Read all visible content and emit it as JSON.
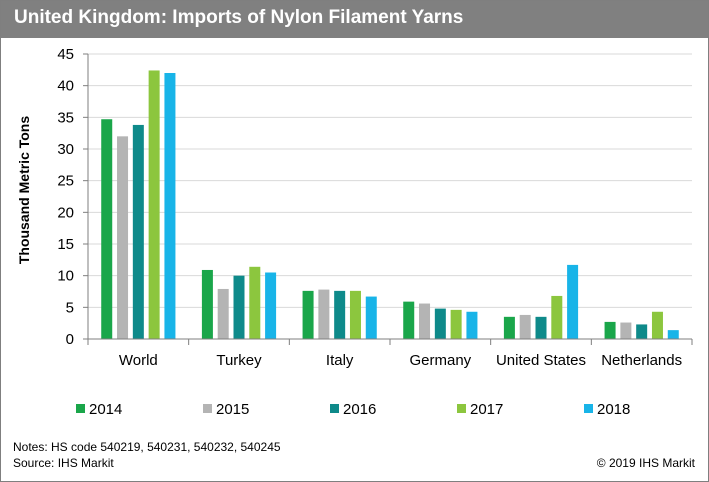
{
  "header": {
    "title": "United Kingdom: Imports of Nylon Filament Yarns"
  },
  "footer": {
    "notes": "Notes: HS code 540219, 540231, 540232, 540245",
    "source": "Source: IHS Markit",
    "copyright": "© 2019 IHS Markit"
  },
  "chart_data": {
    "type": "bar",
    "title": "United Kingdom: Imports of Nylon Filament Yarns",
    "xlabel": "",
    "ylabel": "Thousand Metric Tons",
    "ylim": [
      0,
      45
    ],
    "yticks": [
      0,
      5,
      10,
      15,
      20,
      25,
      30,
      35,
      40,
      45
    ],
    "grid": true,
    "legend_position": "bottom",
    "categories": [
      "World",
      "Turkey",
      "Italy",
      "Germany",
      "United States",
      "Netherlands"
    ],
    "series": [
      {
        "name": "2014",
        "color": "#1aa64a",
        "values": [
          34.7,
          10.9,
          7.6,
          5.9,
          3.5,
          2.7
        ]
      },
      {
        "name": "2015",
        "color": "#b4b4b4",
        "values": [
          32.0,
          7.9,
          7.8,
          5.6,
          3.8,
          2.6
        ]
      },
      {
        "name": "2016",
        "color": "#0e8a8a",
        "values": [
          33.8,
          10.0,
          7.6,
          4.8,
          3.5,
          2.3
        ]
      },
      {
        "name": "2017",
        "color": "#8cc63e",
        "values": [
          42.4,
          11.4,
          7.6,
          4.6,
          6.8,
          4.3
        ]
      },
      {
        "name": "2018",
        "color": "#18b4e8",
        "values": [
          42.0,
          10.5,
          6.7,
          4.3,
          11.7,
          1.4
        ]
      }
    ]
  }
}
